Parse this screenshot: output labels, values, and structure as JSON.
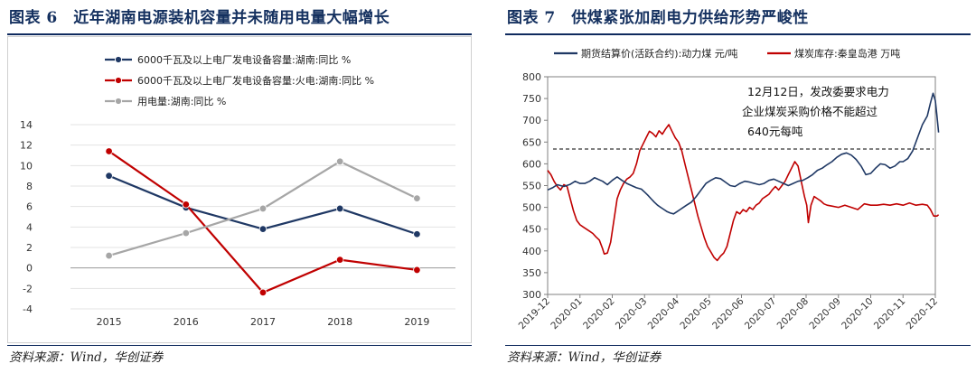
{
  "left": {
    "figure_title": "图表 6　近年湖南电源装机容量并未随用电量大幅增长",
    "source": "资料来源：Wind，华创证券"
  },
  "right": {
    "figure_title": "图表 7　供煤紧张加剧电力供给形势严峻性",
    "source": "资料来源：Wind，华创证券"
  },
  "chart_data": [
    {
      "type": "line",
      "title": "",
      "categories": [
        "2015",
        "2016",
        "2017",
        "2018",
        "2019"
      ],
      "series": [
        {
          "name": "6000千瓦及以上电厂发电设备容量:湖南:同比 %",
          "color": "#1f3864",
          "values": [
            9.0,
            5.9,
            3.8,
            5.8,
            3.3
          ]
        },
        {
          "name": "6000千瓦及以上电厂发电设备容量:火电:湖南:同比 %",
          "color": "#c00000",
          "values": [
            11.4,
            6.2,
            -2.4,
            0.8,
            -0.2
          ]
        },
        {
          "name": "用电量:湖南:同比 %",
          "color": "#a6a6a6",
          "values": [
            1.2,
            3.4,
            5.8,
            10.4,
            6.8
          ]
        }
      ],
      "yticks": [
        "14",
        "12",
        "10",
        "8",
        "6",
        "4",
        "2",
        "0",
        "-2",
        "-4"
      ],
      "ylim": [
        -4,
        14
      ],
      "legend": "top"
    },
    {
      "type": "line",
      "title": "",
      "x_ticks": [
        "2019-12",
        "2020-01",
        "2020-02",
        "2020-03",
        "2020-04",
        "2020-05",
        "2020-06",
        "2020-07",
        "2020-08",
        "2020-09",
        "2020-10",
        "2020-11",
        "2020-12"
      ],
      "yticks": [
        "800",
        "750",
        "700",
        "650",
        "600",
        "550",
        "500",
        "450",
        "400",
        "350",
        "300"
      ],
      "ylim": [
        300,
        800
      ],
      "reference_line": {
        "value": 634,
        "style": "dashed"
      },
      "annotation": [
        "12月12日，发改委要求电力",
        "企业煤炭采购价格不能超过",
        "640元每吨"
      ],
      "series": [
        {
          "name": "期货结算价(活跃合约):动力煤 元/吨",
          "color": "#1f3864",
          "points": [
            [
              0,
              540
            ],
            [
              0.15,
              545
            ],
            [
              0.3,
              552
            ],
            [
              0.5,
              548
            ],
            [
              0.7,
              553
            ],
            [
              0.85,
              560
            ],
            [
              1.0,
              555
            ],
            [
              1.15,
              555
            ],
            [
              1.3,
              560
            ],
            [
              1.45,
              568
            ],
            [
              1.55,
              565
            ],
            [
              1.7,
              560
            ],
            [
              1.85,
              552
            ],
            [
              2.0,
              562
            ],
            [
              2.15,
              570
            ],
            [
              2.3,
              562
            ],
            [
              2.45,
              555
            ],
            [
              2.6,
              550
            ],
            [
              2.75,
              545
            ],
            [
              2.9,
              542
            ],
            [
              3.0,
              535
            ],
            [
              3.1,
              528
            ],
            [
              3.2,
              520
            ],
            [
              3.3,
              512
            ],
            [
              3.4,
              505
            ],
            [
              3.5,
              500
            ],
            [
              3.6,
              495
            ],
            [
              3.7,
              490
            ],
            [
              3.8,
              487
            ],
            [
              3.9,
              485
            ],
            [
              4.0,
              490
            ],
            [
              4.1,
              495
            ],
            [
              4.2,
              500
            ],
            [
              4.3,
              505
            ],
            [
              4.45,
              512
            ],
            [
              4.6,
              525
            ],
            [
              4.75,
              540
            ],
            [
              4.9,
              555
            ],
            [
              5.05,
              562
            ],
            [
              5.2,
              568
            ],
            [
              5.35,
              566
            ],
            [
              5.5,
              558
            ],
            [
              5.65,
              550
            ],
            [
              5.8,
              548
            ],
            [
              5.95,
              555
            ],
            [
              6.1,
              560
            ],
            [
              6.25,
              558
            ],
            [
              6.4,
              555
            ],
            [
              6.55,
              552
            ],
            [
              6.7,
              555
            ],
            [
              6.85,
              562
            ],
            [
              7.0,
              565
            ],
            [
              7.15,
              560
            ],
            [
              7.3,
              555
            ],
            [
              7.45,
              550
            ],
            [
              7.6,
              555
            ],
            [
              7.75,
              560
            ],
            [
              7.9,
              562
            ],
            [
              8.05,
              568
            ],
            [
              8.2,
              575
            ],
            [
              8.35,
              585
            ],
            [
              8.5,
              590
            ],
            [
              8.65,
              598
            ],
            [
              8.8,
              605
            ],
            [
              8.95,
              615
            ],
            [
              9.1,
              622
            ],
            [
              9.25,
              625
            ],
            [
              9.4,
              620
            ],
            [
              9.55,
              610
            ],
            [
              9.7,
              595
            ],
            [
              9.85,
              575
            ],
            [
              10.0,
              578
            ],
            [
              10.15,
              590
            ],
            [
              10.3,
              600
            ],
            [
              10.45,
              598
            ],
            [
              10.6,
              590
            ],
            [
              10.75,
              595
            ],
            [
              10.9,
              605
            ],
            [
              11.0,
              605
            ],
            [
              11.15,
              612
            ],
            [
              11.3,
              630
            ],
            [
              11.45,
              660
            ],
            [
              11.6,
              690
            ],
            [
              11.75,
              710
            ],
            [
              11.85,
              740
            ],
            [
              11.93,
              762
            ],
            [
              12.0,
              745
            ],
            [
              12.05,
              710
            ],
            [
              12.1,
              672
            ]
          ]
        },
        {
          "name": "煤炭库存:秦皇岛港 万吨",
          "color": "#c00000",
          "points": [
            [
              0,
              585
            ],
            [
              0.1,
              575
            ],
            [
              0.2,
              560
            ],
            [
              0.3,
              548
            ],
            [
              0.4,
              540
            ],
            [
              0.5,
              552
            ],
            [
              0.6,
              548
            ],
            [
              0.7,
              520
            ],
            [
              0.8,
              492
            ],
            [
              0.9,
              470
            ],
            [
              1.0,
              460
            ],
            [
              1.1,
              455
            ],
            [
              1.2,
              450
            ],
            [
              1.3,
              445
            ],
            [
              1.4,
              440
            ],
            [
              1.5,
              432
            ],
            [
              1.6,
              425
            ],
            [
              1.7,
              405
            ],
            [
              1.75,
              393
            ],
            [
              1.85,
              395
            ],
            [
              1.95,
              420
            ],
            [
              2.05,
              470
            ],
            [
              2.15,
              520
            ],
            [
              2.25,
              540
            ],
            [
              2.35,
              555
            ],
            [
              2.45,
              565
            ],
            [
              2.55,
              570
            ],
            [
              2.65,
              578
            ],
            [
              2.75,
              600
            ],
            [
              2.85,
              630
            ],
            [
              2.95,
              645
            ],
            [
              3.05,
              660
            ],
            [
              3.15,
              675
            ],
            [
              3.25,
              670
            ],
            [
              3.35,
              662
            ],
            [
              3.45,
              676
            ],
            [
              3.55,
              668
            ],
            [
              3.65,
              680
            ],
            [
              3.75,
              690
            ],
            [
              3.85,
              675
            ],
            [
              3.95,
              660
            ],
            [
              4.05,
              650
            ],
            [
              4.15,
              630
            ],
            [
              4.25,
              600
            ],
            [
              4.35,
              570
            ],
            [
              4.45,
              540
            ],
            [
              4.55,
              510
            ],
            [
              4.65,
              480
            ],
            [
              4.75,
              455
            ],
            [
              4.85,
              430
            ],
            [
              4.95,
              410
            ],
            [
              5.05,
              398
            ],
            [
              5.15,
              385
            ],
            [
              5.25,
              378
            ],
            [
              5.35,
              388
            ],
            [
              5.45,
              395
            ],
            [
              5.55,
              410
            ],
            [
              5.65,
              440
            ],
            [
              5.75,
              470
            ],
            [
              5.85,
              490
            ],
            [
              5.95,
              485
            ],
            [
              6.05,
              495
            ],
            [
              6.15,
              490
            ],
            [
              6.25,
              500
            ],
            [
              6.35,
              495
            ],
            [
              6.45,
              505
            ],
            [
              6.55,
              510
            ],
            [
              6.65,
              520
            ],
            [
              6.75,
              525
            ],
            [
              6.85,
              530
            ],
            [
              6.95,
              540
            ],
            [
              7.05,
              548
            ],
            [
              7.15,
              540
            ],
            [
              7.25,
              550
            ],
            [
              7.35,
              560
            ],
            [
              7.45,
              575
            ],
            [
              7.55,
              590
            ],
            [
              7.65,
              605
            ],
            [
              7.75,
              595
            ],
            [
              7.85,
              560
            ],
            [
              7.95,
              525
            ],
            [
              8.02,
              505
            ],
            [
              8.07,
              465
            ],
            [
              8.15,
              505
            ],
            [
              8.25,
              525
            ],
            [
              8.35,
              520
            ],
            [
              8.45,
              515
            ],
            [
              8.55,
              508
            ],
            [
              8.65,
              505
            ],
            [
              8.8,
              503
            ],
            [
              9.0,
              500
            ],
            [
              9.2,
              505
            ],
            [
              9.4,
              500
            ],
            [
              9.6,
              495
            ],
            [
              9.8,
              508
            ],
            [
              10.0,
              505
            ],
            [
              10.2,
              505
            ],
            [
              10.4,
              507
            ],
            [
              10.6,
              505
            ],
            [
              10.8,
              508
            ],
            [
              11.0,
              505
            ],
            [
              11.2,
              510
            ],
            [
              11.4,
              505
            ],
            [
              11.6,
              507
            ],
            [
              11.75,
              505
            ],
            [
              11.85,
              495
            ],
            [
              11.95,
              480
            ],
            [
              12.05,
              480
            ],
            [
              12.1,
              483
            ]
          ]
        }
      ],
      "legend": "top"
    }
  ]
}
